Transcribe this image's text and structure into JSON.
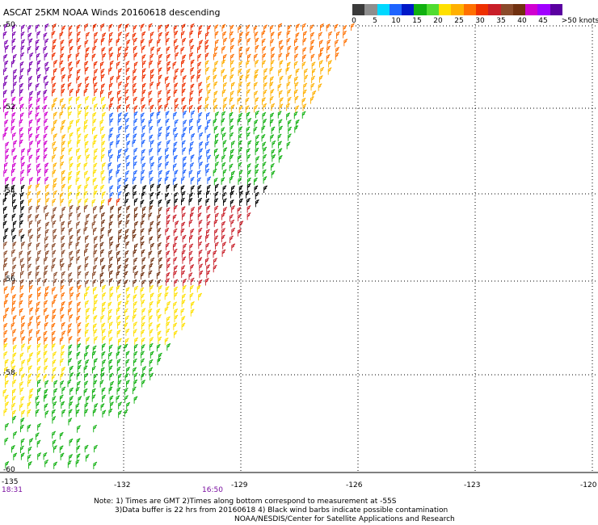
{
  "title": "ASCAT 25KM NOAA Winds 20160618 descending",
  "colorbar": {
    "colors": [
      "#3a3a3a",
      "#8e8e8e",
      "#00d8ff",
      "#1e64ff",
      "#0018c8",
      "#10b010",
      "#50dc30",
      "#ffe000",
      "#ffb000",
      "#ff7000",
      "#ee3000",
      "#c81e28",
      "#8a4a2a",
      "#703010",
      "#d000d0",
      "#a000ff",
      "#5a00a0"
    ],
    "labels": [
      "0",
      "5",
      "10",
      "15",
      "20",
      "25",
      "30",
      "35",
      "40",
      "45",
      ">50 knots"
    ]
  },
  "axes": {
    "lat_labels": [
      "-50",
      "-52",
      "-54",
      "-56",
      "-58",
      "-60"
    ],
    "lon_labels": [
      "-135",
      "-132",
      "-129",
      "-126",
      "-123",
      "-120"
    ]
  },
  "time_labels": [
    "18:31",
    "16:50"
  ],
  "notes": [
    "Note: 1) Times are GMT 2)Times along bottom correspond to measurement at -55S",
    "3)Data buffer is 22 hrs from 20160618 4) Black wind barbs indicate possible contamination",
    "NOAA/NESDIS/Center for Satellite Applications and Research"
  ]
}
